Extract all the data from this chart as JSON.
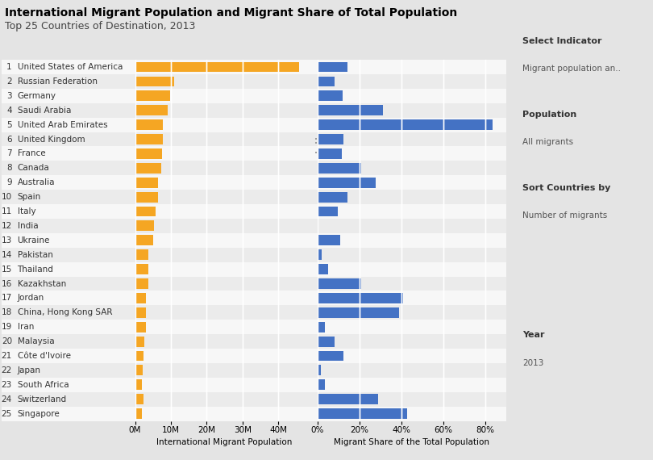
{
  "title_line1": "International Migrant Population and Migrant Share of Total Population",
  "title_line2": "Top 25 Countries of Destination, 2013",
  "countries": [
    "United States of America",
    "Russian Federation",
    "Germany",
    "Saudi Arabia",
    "United Arab Emirates",
    "United Kingdom",
    "France",
    "Canada",
    "Australia",
    "Spain",
    "Italy",
    "India",
    "Ukraine",
    "Pakistan",
    "Thailand",
    "Kazakhstan",
    "Jordan",
    "China, Hong Kong SAR",
    "Iran",
    "Malaysia",
    "Côte d'Ivoire",
    "Japan",
    "South Africa",
    "Switzerland",
    "Singapore"
  ],
  "migrant_pop_millions": [
    45.8,
    11.0,
    9.8,
    9.1,
    7.8,
    7.8,
    7.5,
    7.3,
    6.5,
    6.5,
    5.7,
    5.2,
    5.1,
    3.6,
    3.7,
    3.7,
    3.1,
    3.0,
    3.0,
    2.5,
    2.4,
    2.1,
    1.9,
    2.3,
    1.9
  ],
  "migrant_share_pct": [
    14.3,
    8.1,
    11.9,
    31.4,
    83.7,
    12.4,
    11.6,
    20.7,
    27.7,
    14.3,
    9.7,
    0.4,
    10.8,
    2.0,
    5.0,
    21.0,
    40.8,
    38.9,
    3.5,
    8.3,
    12.5,
    1.6,
    3.6,
    29.0,
    42.9
  ],
  "bar_color_pop": "#f5a623",
  "bar_color_share": "#4472c4",
  "background_color": "#e4e4e4",
  "sidebar_bg": "#d0d0d0",
  "chart_bg": "#ffffff",
  "row_even_bg": "#ebebeb",
  "row_odd_bg": "#f7f7f7",
  "title_fontsize": 10,
  "subtitle_fontsize": 9,
  "label_fontsize": 7.5,
  "tick_fontsize": 7.5,
  "xlabel_fontsize": 7.5,
  "sidebar_header_fontsize": 8,
  "sidebar_text_fontsize": 7.5
}
